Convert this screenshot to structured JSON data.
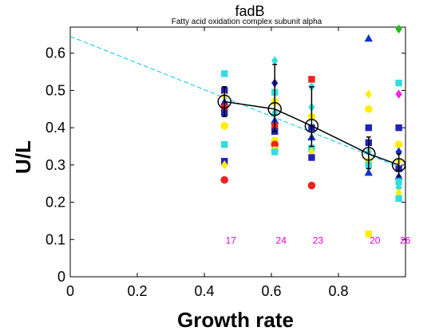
{
  "chart_data": {
    "type": "scatter",
    "title": "fadB",
    "subtitle": "Fatty acid oxidation complex subunit alpha",
    "xlabel": "Growth rate",
    "ylabel": "U/L",
    "xlim": [
      0,
      1.0
    ],
    "ylim": [
      0,
      0.67
    ],
    "xticks": [
      "0",
      "0.2",
      "0.4",
      "0.6",
      "0.8"
    ],
    "xtick_values": [
      0,
      0.2,
      0.4,
      0.6,
      0.8
    ],
    "yticks": [
      "0",
      "0.1",
      "0.2",
      "0.3",
      "0.4",
      "0.5",
      "0.6"
    ],
    "ytick_values": [
      0,
      0.1,
      0.2,
      0.3,
      0.4,
      0.5,
      0.6
    ],
    "grid": false,
    "fit_line": {
      "x": [
        0,
        0.98
      ],
      "y": [
        0.645,
        0.295
      ],
      "color": "#00ccdd"
    },
    "mean_series": {
      "x": [
        0.46,
        0.61,
        0.72,
        0.89,
        0.98
      ],
      "y": [
        0.47,
        0.45,
        0.405,
        0.33,
        0.3
      ],
      "err_low": [
        0.43,
        0.39,
        0.35,
        0.29,
        0.27
      ],
      "err_high": [
        0.51,
        0.57,
        0.51,
        0.375,
        0.33
      ]
    },
    "counts": {
      "labels": [
        "17",
        "24",
        "23",
        "20",
        "26"
      ],
      "x": [
        0.46,
        0.61,
        0.72,
        0.89,
        0.98
      ],
      "y": 0.1,
      "color": "#dd00dd"
    },
    "groups": [
      {
        "x": 0.46,
        "points": [
          {
            "y": 0.545,
            "shape": "square",
            "color": "#33dddd"
          },
          {
            "y": 0.5,
            "shape": "square",
            "color": "#2222bb"
          },
          {
            "y": 0.485,
            "shape": "diamond",
            "color": "#ffee00"
          },
          {
            "y": 0.47,
            "shape": "triangle",
            "color": "#1133cc"
          },
          {
            "y": 0.455,
            "shape": "circle",
            "color": "#ee2222"
          },
          {
            "y": 0.44,
            "shape": "square",
            "color": "#2222bb"
          },
          {
            "y": 0.405,
            "shape": "circle",
            "color": "#ffee00"
          },
          {
            "y": 0.355,
            "shape": "square",
            "color": "#33dddd"
          },
          {
            "y": 0.31,
            "shape": "square",
            "color": "#2222bb"
          },
          {
            "y": 0.3,
            "shape": "diamond",
            "color": "#ffee00"
          },
          {
            "y": 0.26,
            "shape": "circle",
            "color": "#ee2222"
          }
        ]
      },
      {
        "x": 0.61,
        "points": [
          {
            "y": 0.58,
            "shape": "diamond",
            "color": "#33dddd"
          },
          {
            "y": 0.52,
            "shape": "diamond",
            "color": "#2222bb"
          },
          {
            "y": 0.495,
            "shape": "square",
            "color": "#33dddd"
          },
          {
            "y": 0.47,
            "shape": "circle",
            "color": "#ffee00"
          },
          {
            "y": 0.44,
            "shape": "diamond",
            "color": "#33dddd"
          },
          {
            "y": 0.42,
            "shape": "triangle",
            "color": "#1133cc"
          },
          {
            "y": 0.405,
            "shape": "square",
            "color": "#ee2222"
          },
          {
            "y": 0.39,
            "shape": "square",
            "color": "#2222bb"
          },
          {
            "y": 0.365,
            "shape": "circle",
            "color": "#ffee00"
          },
          {
            "y": 0.355,
            "shape": "circle",
            "color": "#ee2222"
          },
          {
            "y": 0.34,
            "shape": "circle",
            "color": "#ffee00"
          },
          {
            "y": 0.335,
            "shape": "square",
            "color": "#33dddd"
          }
        ]
      },
      {
        "x": 0.72,
        "points": [
          {
            "y": 0.53,
            "shape": "square",
            "color": "#ee2222"
          },
          {
            "y": 0.51,
            "shape": "diamond",
            "color": "#33dddd"
          },
          {
            "y": 0.455,
            "shape": "diamond",
            "color": "#33dddd"
          },
          {
            "y": 0.43,
            "shape": "circle",
            "color": "#ffee00"
          },
          {
            "y": 0.4,
            "shape": "square",
            "color": "#2222bb"
          },
          {
            "y": 0.375,
            "shape": "triangle",
            "color": "#1133cc"
          },
          {
            "y": 0.345,
            "shape": "square",
            "color": "#33dddd"
          },
          {
            "y": 0.335,
            "shape": "diamond",
            "color": "#ffee00"
          },
          {
            "y": 0.32,
            "shape": "square",
            "color": "#2222bb"
          },
          {
            "y": 0.245,
            "shape": "circle",
            "color": "#ee2222"
          }
        ]
      },
      {
        "x": 0.89,
        "points": [
          {
            "y": 0.64,
            "shape": "triangle",
            "color": "#1133cc"
          },
          {
            "y": 0.49,
            "shape": "diamond",
            "color": "#ffee00"
          },
          {
            "y": 0.45,
            "shape": "circle",
            "color": "#ffee00"
          },
          {
            "y": 0.4,
            "shape": "square",
            "color": "#2222bb"
          },
          {
            "y": 0.36,
            "shape": "square",
            "color": "#2222bb"
          },
          {
            "y": 0.335,
            "shape": "diamond",
            "color": "#33dddd"
          },
          {
            "y": 0.31,
            "shape": "circle",
            "color": "#ffee00"
          },
          {
            "y": 0.3,
            "shape": "square",
            "color": "#33dddd"
          },
          {
            "y": 0.28,
            "shape": "triangle",
            "color": "#1133cc"
          },
          {
            "y": 0.115,
            "shape": "square",
            "color": "#ffee00"
          }
        ]
      },
      {
        "x": 0.98,
        "points": [
          {
            "y": 0.665,
            "shape": "diamond",
            "color": "#22bb22"
          },
          {
            "y": 0.52,
            "shape": "square",
            "color": "#33dddd"
          },
          {
            "y": 0.49,
            "shape": "diamond",
            "color": "#ee22ee"
          },
          {
            "y": 0.4,
            "shape": "square",
            "color": "#2222bb"
          },
          {
            "y": 0.355,
            "shape": "circle",
            "color": "#ffee00"
          },
          {
            "y": 0.335,
            "shape": "diamond",
            "color": "#1133cc"
          },
          {
            "y": 0.31,
            "shape": "diamond",
            "color": "#ffee00"
          },
          {
            "y": 0.29,
            "shape": "square",
            "color": "#2222bb"
          },
          {
            "y": 0.27,
            "shape": "triangle",
            "color": "#1133cc"
          },
          {
            "y": 0.255,
            "shape": "square",
            "color": "#33dddd"
          },
          {
            "y": 0.24,
            "shape": "diamond",
            "color": "#33dddd"
          },
          {
            "y": 0.225,
            "shape": "diamond",
            "color": "#ffee00"
          },
          {
            "y": 0.21,
            "shape": "square",
            "color": "#33dddd"
          }
        ]
      }
    ]
  }
}
